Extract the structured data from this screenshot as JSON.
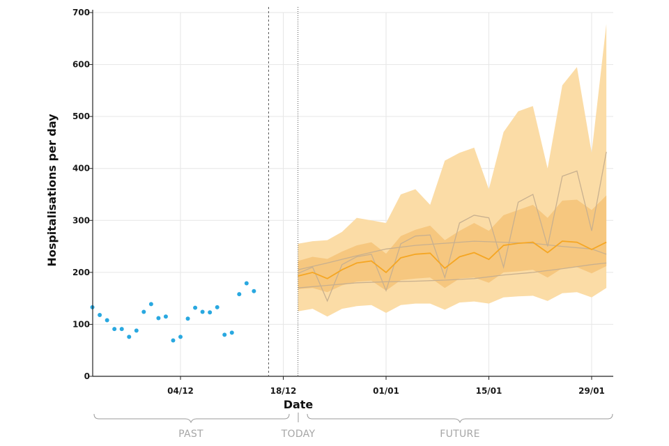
{
  "chart_data": {
    "type": "line",
    "xlabel": "Date",
    "ylabel": "Hospitalisations per day",
    "ylim": [
      0,
      700
    ],
    "yticks": [
      0,
      100,
      200,
      300,
      400,
      500,
      600,
      700
    ],
    "x_tick_labels": [
      "04/12",
      "18/12",
      "01/01",
      "15/01",
      "29/01"
    ],
    "x_tick_dates": [
      "2021-12-04",
      "2021-12-18",
      "2022-01-01",
      "2022-01-15",
      "2022-01-29"
    ],
    "today": "2021-12-20",
    "last_data_date": "2021-12-16",
    "grid": true,
    "colors": {
      "observed": "#29a8e0",
      "median": "#f5a623",
      "inner_band": "#f6c77f",
      "outer_band": "#fbdca6",
      "trajectories": "#c8b08f",
      "axis": "#222222",
      "grid": "#e6e6e6"
    },
    "period_labels": {
      "past": "PAST",
      "today": "TODAY",
      "future": "FUTURE"
    },
    "observed": [
      [
        "2021-11-22",
        133
      ],
      [
        "2021-11-23",
        118
      ],
      [
        "2021-11-24",
        108
      ],
      [
        "2021-11-25",
        91
      ],
      [
        "2021-11-26",
        91
      ],
      [
        "2021-11-27",
        76
      ],
      [
        "2021-11-28",
        88
      ],
      [
        "2021-11-29",
        124
      ],
      [
        "2021-11-30",
        139
      ],
      [
        "2021-12-01",
        112
      ],
      [
        "2021-12-02",
        115
      ],
      [
        "2021-12-03",
        69
      ],
      [
        "2021-12-04",
        76
      ],
      [
        "2021-12-05",
        111
      ],
      [
        "2021-12-06",
        132
      ],
      [
        "2021-12-07",
        124
      ],
      [
        "2021-12-08",
        123
      ],
      [
        "2021-12-09",
        133
      ],
      [
        "2021-12-10",
        80
      ],
      [
        "2021-12-11",
        84
      ],
      [
        "2021-12-12",
        158
      ],
      [
        "2021-12-13",
        179
      ],
      [
        "2021-12-14",
        164
      ]
    ],
    "forecast": {
      "dates": [
        "2021-12-20",
        "2021-12-22",
        "2021-12-24",
        "2021-12-26",
        "2021-12-28",
        "2021-12-30",
        "2022-01-01",
        "2022-01-03",
        "2022-01-05",
        "2022-01-07",
        "2022-01-09",
        "2022-01-11",
        "2022-01-13",
        "2022-01-15",
        "2022-01-17",
        "2022-01-19",
        "2022-01-21",
        "2022-01-23",
        "2022-01-25",
        "2022-01-27",
        "2022-01-29",
        "2022-01-31"
      ],
      "median": [
        193,
        200,
        188,
        205,
        218,
        222,
        200,
        228,
        235,
        237,
        208,
        230,
        238,
        225,
        252,
        256,
        258,
        238,
        260,
        258,
        244,
        258
      ],
      "inner_low": [
        168,
        170,
        162,
        175,
        182,
        184,
        165,
        185,
        188,
        190,
        170,
        188,
        190,
        180,
        200,
        202,
        205,
        190,
        208,
        210,
        198,
        212
      ],
      "inner_high": [
        222,
        230,
        226,
        240,
        252,
        258,
        236,
        270,
        282,
        290,
        262,
        280,
        295,
        280,
        310,
        320,
        330,
        305,
        338,
        340,
        320,
        348
      ],
      "outer_low": [
        125,
        130,
        115,
        130,
        135,
        137,
        122,
        137,
        140,
        140,
        128,
        142,
        144,
        140,
        152,
        154,
        155,
        145,
        160,
        162,
        152,
        170
      ],
      "outer_high": [
        255,
        260,
        262,
        278,
        305,
        300,
        295,
        350,
        360,
        330,
        415,
        430,
        440,
        360,
        470,
        510,
        520,
        400,
        560,
        595,
        430,
        678
      ]
    },
    "trajectories": [
      {
        "dates": [
          "2021-12-20",
          "2021-12-22",
          "2021-12-24",
          "2021-12-26",
          "2021-12-28",
          "2021-12-30",
          "2022-01-01",
          "2022-01-03",
          "2022-01-05",
          "2022-01-07",
          "2022-01-09",
          "2022-01-11",
          "2022-01-13",
          "2022-01-15",
          "2022-01-17",
          "2022-01-19",
          "2022-01-21",
          "2022-01-23",
          "2022-01-25",
          "2022-01-27",
          "2022-01-29",
          "2022-01-31"
        ],
        "values": [
          198,
          210,
          145,
          215,
          230,
          235,
          165,
          255,
          270,
          272,
          190,
          295,
          310,
          305,
          210,
          335,
          350,
          250,
          385,
          395,
          280,
          432
        ]
      },
      {
        "dates": [
          "2021-12-20",
          "2021-12-24",
          "2021-12-28",
          "2022-01-01",
          "2022-01-05",
          "2022-01-09",
          "2022-01-13",
          "2022-01-17",
          "2022-01-21",
          "2022-01-25",
          "2022-01-29",
          "2022-01-31"
        ],
        "values": [
          205,
          218,
          232,
          245,
          252,
          256,
          260,
          258,
          256,
          250,
          245,
          235
        ]
      },
      {
        "dates": [
          "2021-12-20",
          "2021-12-24",
          "2021-12-28",
          "2022-01-01",
          "2022-01-05",
          "2022-01-09",
          "2022-01-13",
          "2022-01-17",
          "2022-01-21",
          "2022-01-25",
          "2022-01-29",
          "2022-01-31"
        ],
        "values": [
          170,
          175,
          180,
          182,
          183,
          185,
          188,
          195,
          200,
          207,
          215,
          218
        ]
      }
    ]
  }
}
